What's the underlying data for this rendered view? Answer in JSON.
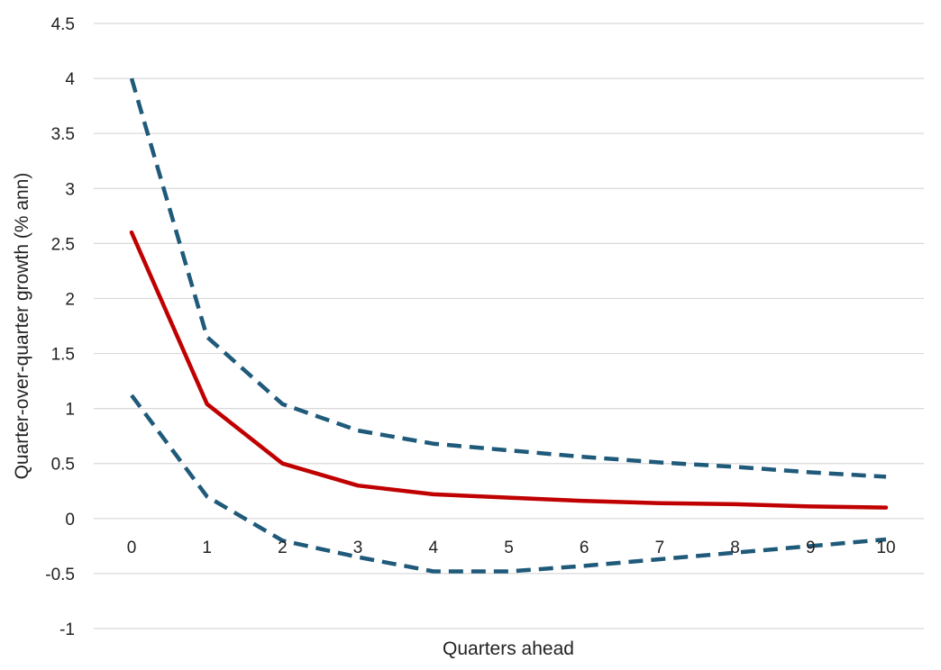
{
  "chart_data": {
    "type": "line",
    "title": "",
    "xlabel": "Quarters ahead",
    "ylabel": "Quarter-over-quarter growth (% ann)",
    "x": [
      0,
      1,
      2,
      3,
      4,
      5,
      6,
      7,
      8,
      9,
      10
    ],
    "x_tick_labels": [
      "0",
      "1",
      "2",
      "3",
      "4",
      "5",
      "6",
      "7",
      "8",
      "9",
      "10"
    ],
    "ylim": [
      -1,
      4.5
    ],
    "y_ticks": [
      -1,
      -0.5,
      0,
      0.5,
      1,
      1.5,
      2,
      2.5,
      3,
      3.5,
      4,
      4.5
    ],
    "y_tick_labels": [
      "-1",
      "-0.5",
      "0",
      "0.5",
      "1",
      "1.5",
      "2",
      "2.5",
      "3",
      "3.5",
      "4",
      "4.5"
    ],
    "grid": true,
    "legend": "none",
    "series": [
      {
        "values": [
          4.0,
          1.65,
          1.04,
          0.8,
          0.68,
          0.62,
          0.56,
          0.51,
          0.47,
          0.42,
          0.38
        ],
        "color": "#1f5a7a",
        "style": "dashed"
      },
      {
        "values": [
          2.6,
          1.04,
          0.5,
          0.3,
          0.22,
          0.19,
          0.16,
          0.14,
          0.13,
          0.11,
          0.1
        ],
        "color": "#c00000",
        "style": "solid"
      },
      {
        "values": [
          1.12,
          0.2,
          -0.2,
          -0.35,
          -0.48,
          -0.48,
          -0.43,
          -0.37,
          -0.31,
          -0.25,
          -0.19
        ],
        "color": "#1f5a7a",
        "style": "dashed"
      }
    ]
  }
}
